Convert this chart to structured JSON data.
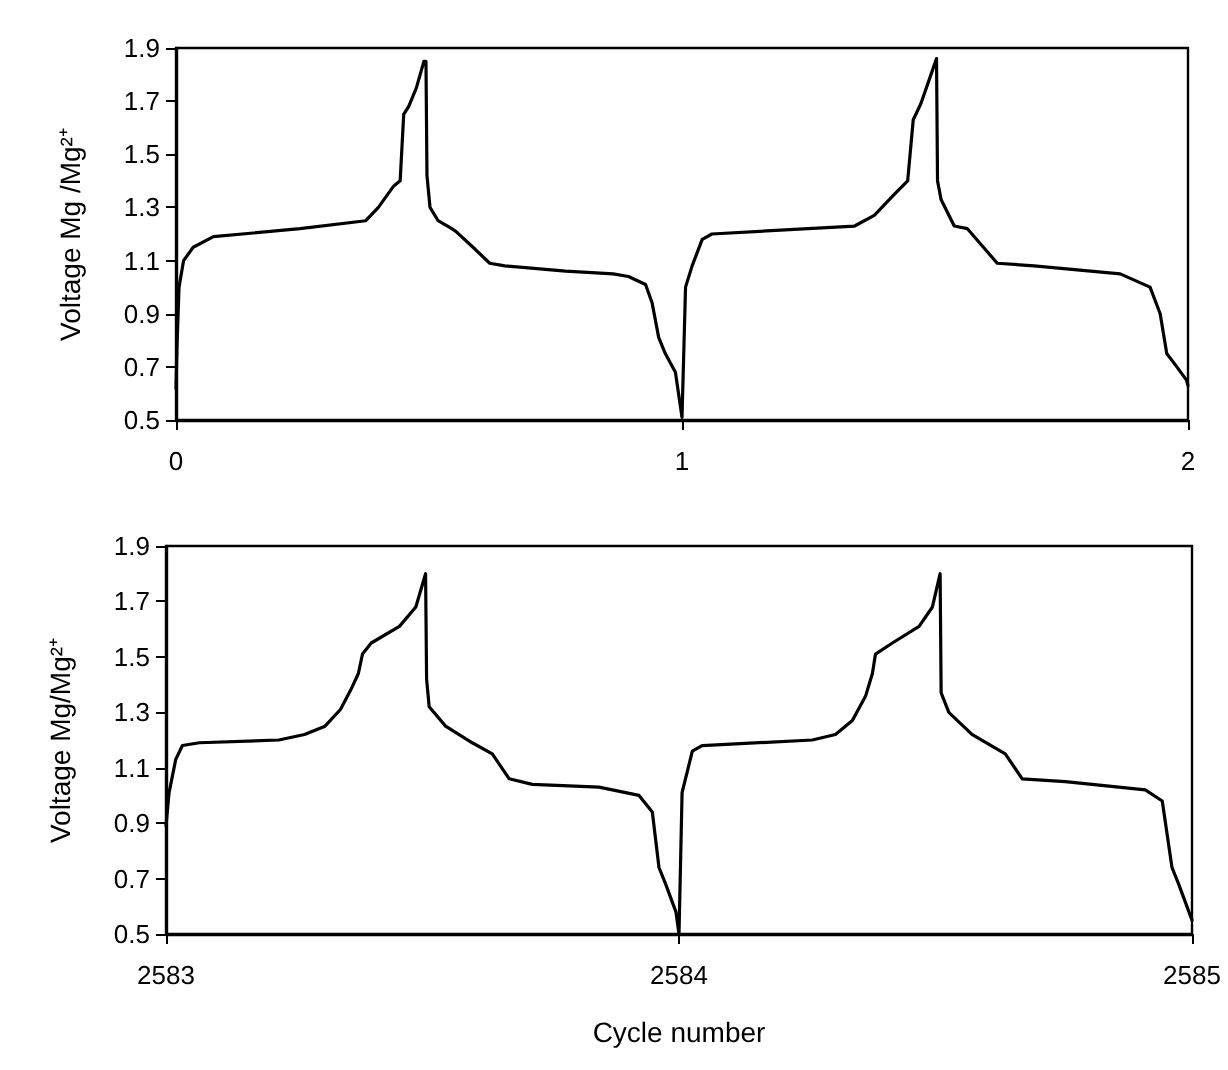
{
  "chart_data": [
    {
      "type": "line",
      "ylabel": "Voltage Mg /Mg²⁺",
      "xlim": [
        0,
        2
      ],
      "xticks": [
        0,
        1,
        2
      ],
      "ylim": [
        0.5,
        1.9
      ],
      "yticks": [
        0.5,
        0.7,
        0.9,
        1.1,
        1.3,
        1.5,
        1.7,
        1.9
      ],
      "grid": false,
      "marker": "none",
      "line_style": "solid",
      "series": [
        {
          "color": "#000000",
          "x": [
            0,
            0.002,
            0.006,
            0.015,
            0.034,
            0.074,
            0.245,
            0.375,
            0.4,
            0.43,
            0.443,
            0.45,
            0.46,
            0.475,
            0.49,
            0.494,
            0.496,
            0.502,
            0.518,
            0.545,
            0.553,
            0.587,
            0.62,
            0.65,
            0.77,
            0.864,
            0.894,
            0.928,
            0.941,
            0.954,
            0.967,
            0.987,
            1.0,
            1.007,
            1.02,
            1.04,
            1.059,
            1.341,
            1.38,
            1.42,
            1.446,
            1.457,
            1.472,
            1.503,
            1.505,
            1.512,
            1.538,
            1.564,
            1.623,
            1.696,
            1.866,
            1.925,
            1.945,
            1.958,
            1.978,
            1.997,
            2.0
          ],
          "values": [
            0.62,
            0.78,
            1.0,
            1.1,
            1.15,
            1.19,
            1.22,
            1.25,
            1.3,
            1.38,
            1.4,
            1.65,
            1.68,
            1.75,
            1.85,
            1.85,
            1.42,
            1.3,
            1.25,
            1.22,
            1.21,
            1.15,
            1.09,
            1.08,
            1.06,
            1.05,
            1.04,
            1.01,
            0.94,
            0.81,
            0.75,
            0.68,
            0.51,
            1.0,
            1.08,
            1.18,
            1.2,
            1.23,
            1.27,
            1.35,
            1.4,
            1.63,
            1.69,
            1.86,
            1.4,
            1.33,
            1.23,
            1.22,
            1.09,
            1.08,
            1.05,
            1.0,
            0.9,
            0.75,
            0.7,
            0.65,
            0.63
          ]
        }
      ]
    },
    {
      "type": "line",
      "ylabel": "Voltage Mg/Mg²⁺",
      "xlabel": "Cycle number",
      "xlim": [
        2583,
        2585
      ],
      "xticks": [
        2583,
        2584,
        2585
      ],
      "ylim": [
        0.5,
        1.9
      ],
      "yticks": [
        0.5,
        0.7,
        0.9,
        1.1,
        1.3,
        1.5,
        1.7,
        1.9
      ],
      "grid": false,
      "marker": "none",
      "line_style": "solid",
      "series": [
        {
          "color": "#000000",
          "x": [
            2583,
            2583.006,
            2583.019,
            2583.032,
            2583.065,
            2583.22,
            2583.27,
            2583.31,
            2583.34,
            2583.36,
            2583.375,
            2583.383,
            2583.4,
            2583.455,
            2583.487,
            2583.506,
            2583.508,
            2583.513,
            2583.545,
            2583.597,
            2583.636,
            2583.669,
            2583.714,
            2583.844,
            2583.922,
            2583.948,
            2583.961,
            2583.974,
            2583.994,
            2584,
            2584.006,
            2584.026,
            2584.045,
            2584.26,
            2584.305,
            2584.338,
            2584.364,
            2584.377,
            2584.383,
            2584.416,
            2584.468,
            2584.494,
            2584.509,
            2584.511,
            2584.526,
            2584.571,
            2584.636,
            2584.669,
            2584.753,
            2584.909,
            2584.942,
            2584.961,
            2584.974,
            2585
          ],
          "values": [
            0.89,
            1.01,
            1.13,
            1.18,
            1.19,
            1.2,
            1.22,
            1.25,
            1.31,
            1.38,
            1.44,
            1.51,
            1.55,
            1.61,
            1.68,
            1.8,
            1.42,
            1.32,
            1.25,
            1.19,
            1.15,
            1.06,
            1.04,
            1.03,
            1.0,
            0.94,
            0.74,
            0.68,
            0.58,
            0.5,
            1.01,
            1.16,
            1.18,
            1.2,
            1.22,
            1.27,
            1.36,
            1.44,
            1.51,
            1.55,
            1.61,
            1.68,
            1.8,
            1.37,
            1.3,
            1.22,
            1.15,
            1.06,
            1.05,
            1.02,
            0.98,
            0.74,
            0.68,
            0.55
          ]
        }
      ]
    }
  ]
}
